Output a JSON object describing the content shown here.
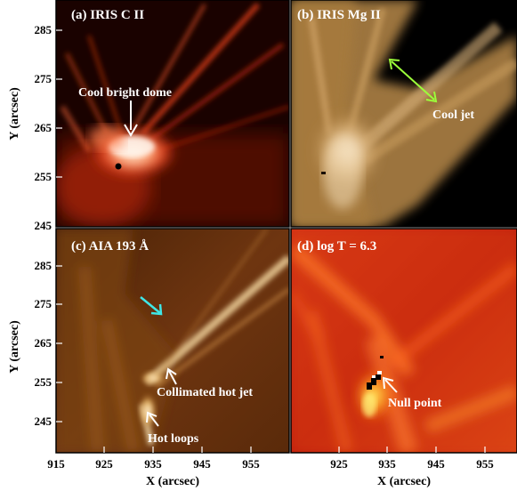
{
  "panels": {
    "a": {
      "title": "(a) IRIS C II",
      "annotation": "Cool bright dome"
    },
    "b": {
      "title": "(b) IRIS Mg II",
      "annotation": "Cool jet"
    },
    "c": {
      "title": "(c) AIA 193 Å",
      "annotation_jet": "Collimated hot jet",
      "annotation_loops": "Hot loops"
    },
    "d": {
      "title": "(d) log T = 6.3",
      "annotation": "Null point"
    }
  },
  "axes": {
    "ylabel": "Y (arcsec)",
    "xlabel": "X (arcsec)",
    "y_ticks": [
      "285",
      "275",
      "265",
      "255",
      "245"
    ],
    "x_ticks": [
      "915",
      "925",
      "935",
      "945",
      "955"
    ]
  },
  "colors": {
    "arrow_white": "#ffffff",
    "arrow_green": "#9cff3a",
    "arrow_cyan": "#3fe6e6"
  }
}
